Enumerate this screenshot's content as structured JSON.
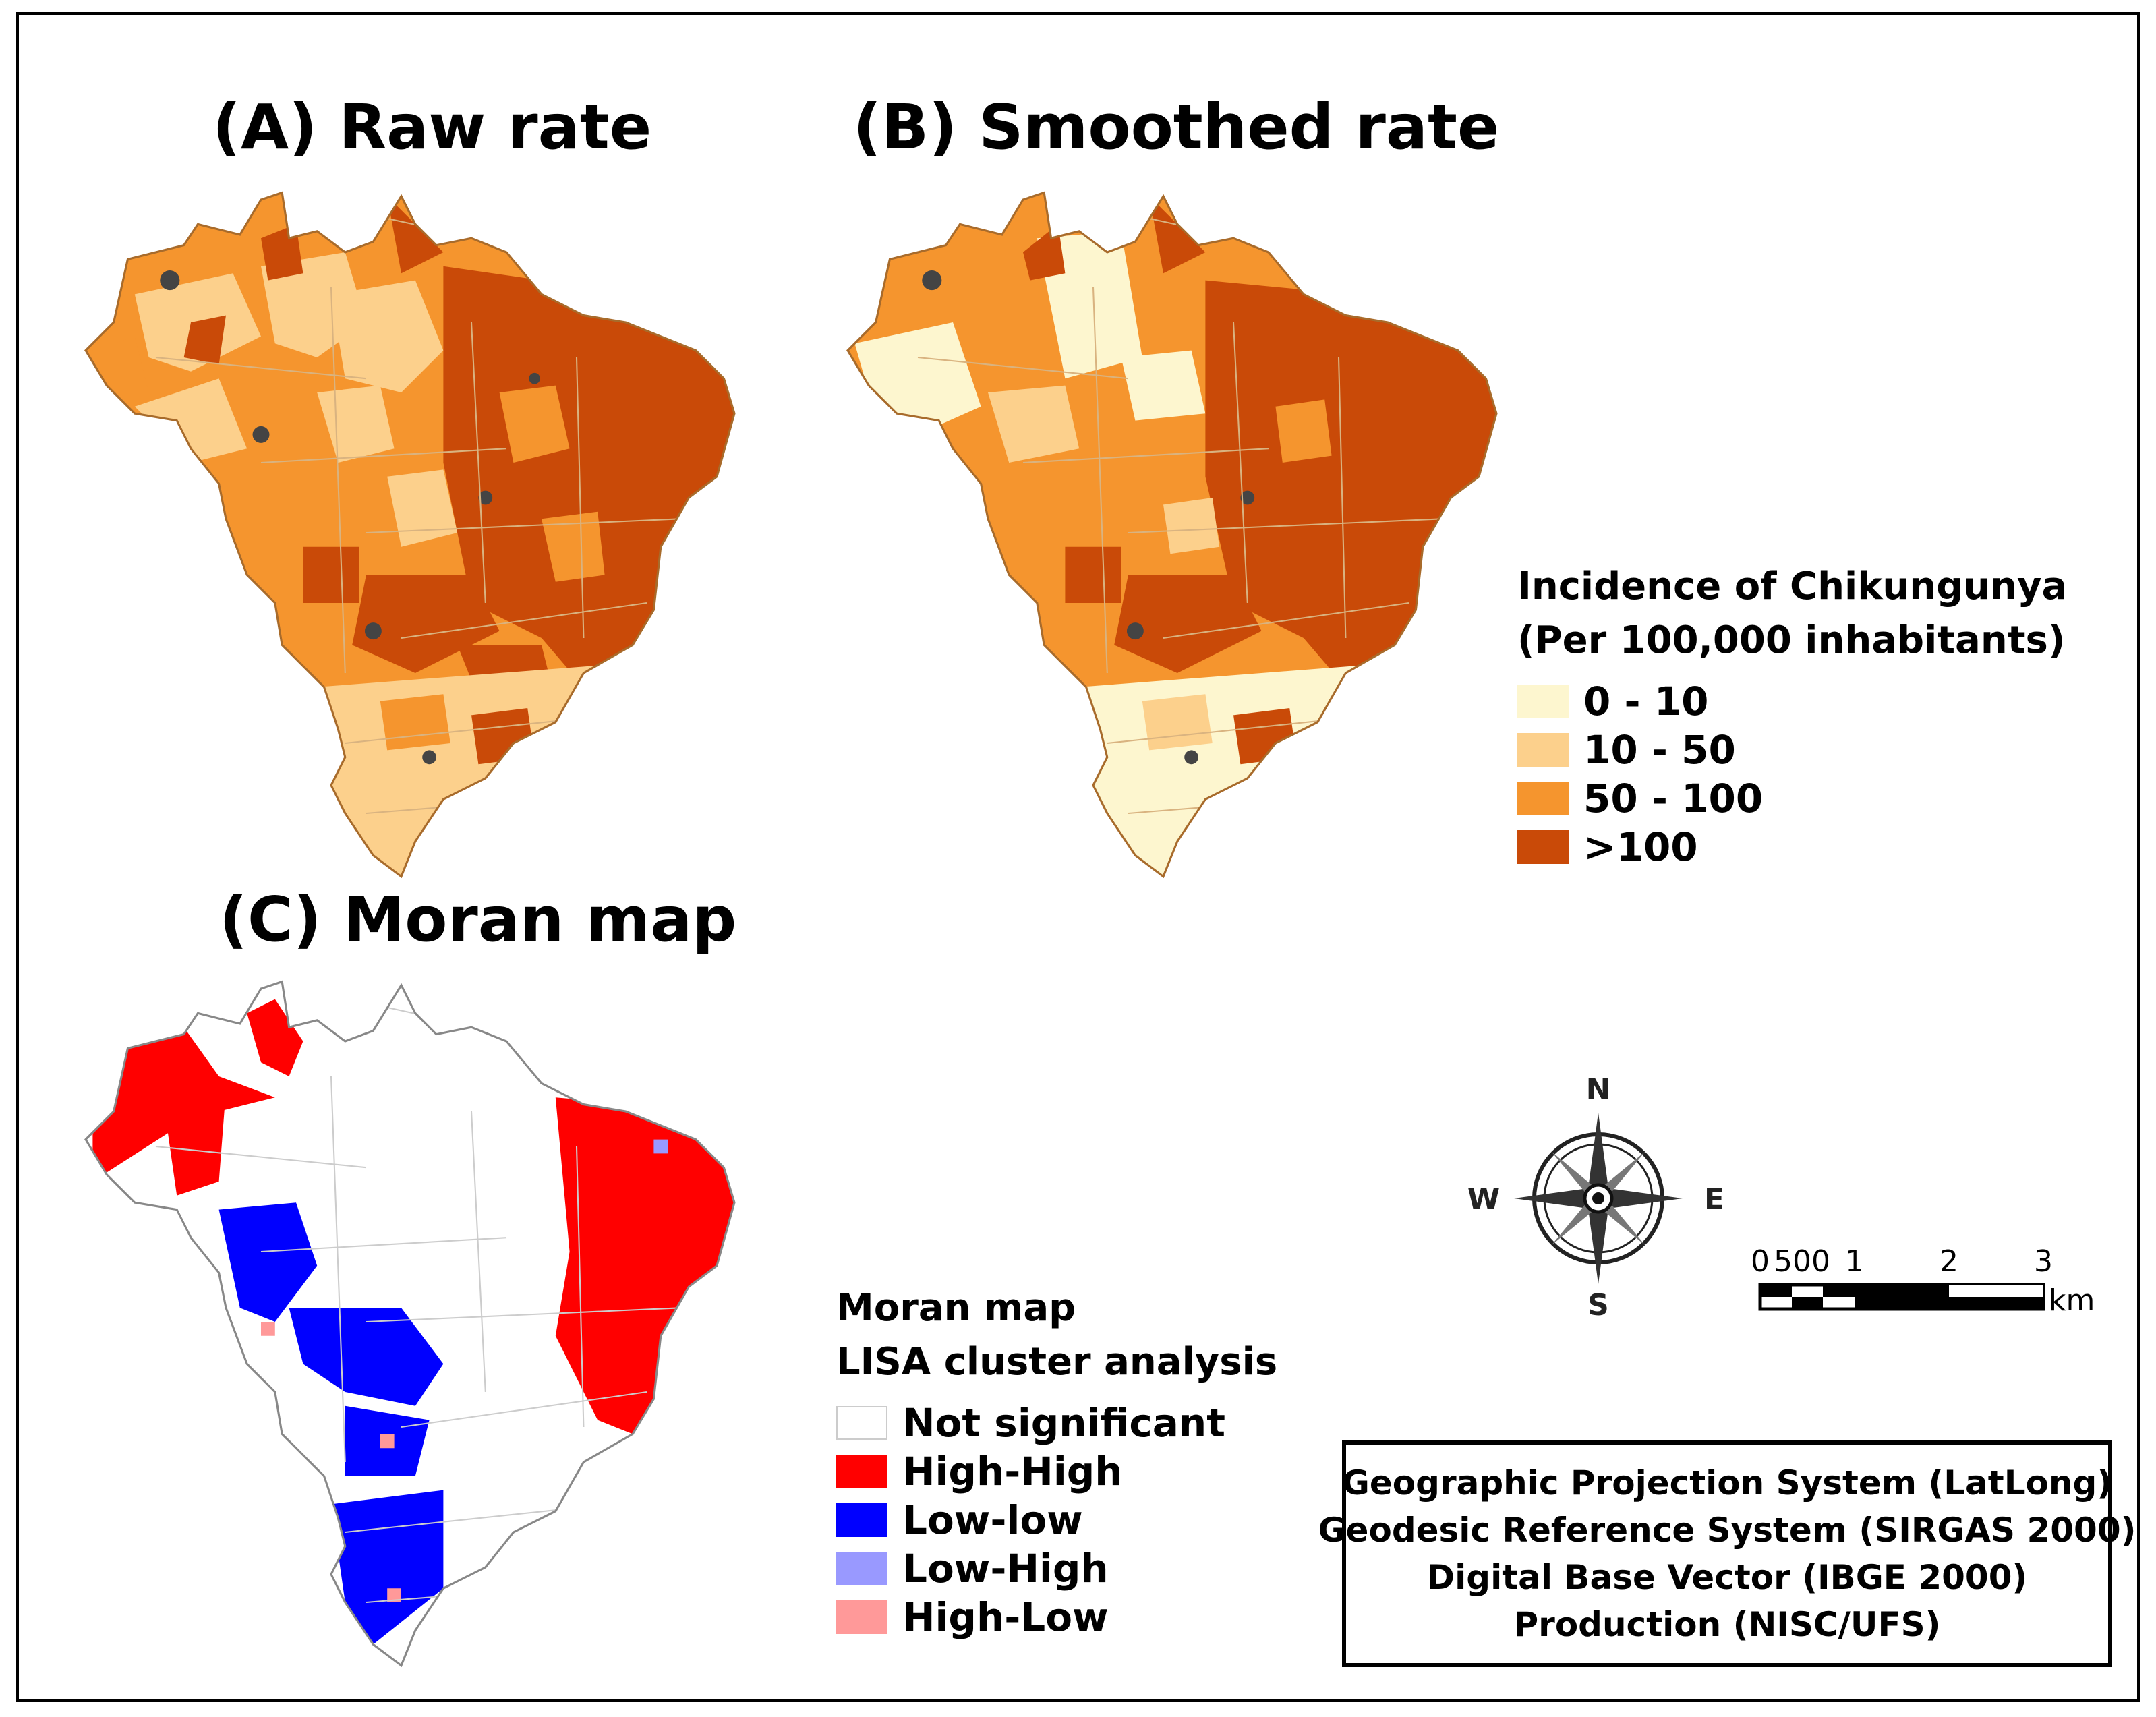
{
  "titles": {
    "raw": "(A) Raw rate",
    "smoothed": "(B) Smoothed rate",
    "moran": "(C) Moran map"
  },
  "incidence_legend": {
    "title_line1": "Incidence of Chikungunya",
    "title_line2": "(Per 100,000 inhabitants)",
    "classes": [
      {
        "label": "0 - 10",
        "color": "#fdf6cf"
      },
      {
        "label": "10 - 50",
        "color": "#fcd08c"
      },
      {
        "label": "50 - 100",
        "color": "#f5952e"
      },
      {
        "label": ">100",
        "color": "#c94a08"
      }
    ]
  },
  "moran_legend": {
    "title_line1": "Moran map",
    "title_line2": "LISA cluster analysis",
    "classes": [
      {
        "label": "Not significant",
        "color": "#ffffff"
      },
      {
        "label": "High-High",
        "color": "#ff0000"
      },
      {
        "label": "Low-low",
        "color": "#0000ff"
      },
      {
        "label": "Low-High",
        "color": "#9999ff"
      },
      {
        "label": "High-Low",
        "color": "#ff9999"
      }
    ]
  },
  "compass": {
    "n": "N",
    "s": "S",
    "e": "E",
    "w": "W"
  },
  "scale_bar": {
    "ticks": [
      "0",
      "500",
      "1",
      "2",
      "3"
    ],
    "unit": "km"
  },
  "credits": [
    "Geographic Projection System (LatLong)",
    "Geodesic Reference System (SIRGAS 2000)",
    "Digital Base Vector (IBGE 2000)",
    "Production (NISC/UFS)"
  ]
}
